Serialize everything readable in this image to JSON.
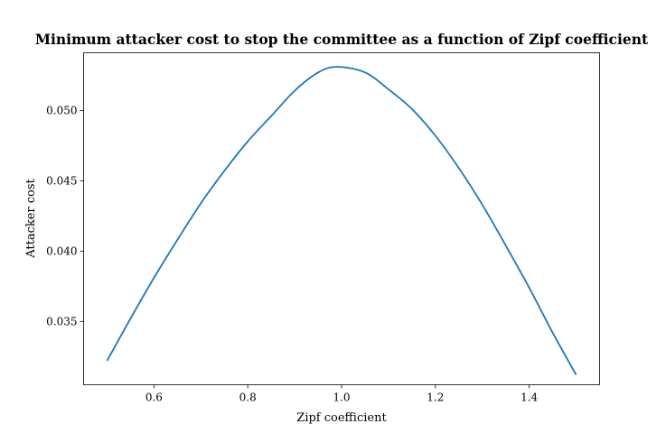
{
  "chart_data": {
    "type": "line",
    "title": "Minimum attacker cost to stop the committee as a function of Zipf coefficient",
    "xlabel": "Zipf coefficient",
    "ylabel": "Attacker cost",
    "xlim": [
      0.45,
      1.55
    ],
    "ylim": [
      0.0305,
      0.0541
    ],
    "grid": false,
    "legend": "none",
    "xticks": [
      {
        "value": 0.6,
        "label": "0.6"
      },
      {
        "value": 0.8,
        "label": "0.8"
      },
      {
        "value": 1.0,
        "label": "1.0"
      },
      {
        "value": 1.2,
        "label": "1.2"
      },
      {
        "value": 1.4,
        "label": "1.4"
      }
    ],
    "yticks": [
      {
        "value": 0.035,
        "label": "0.035"
      },
      {
        "value": 0.04,
        "label": "0.040"
      },
      {
        "value": 0.045,
        "label": "0.045"
      },
      {
        "value": 0.05,
        "label": "0.050"
      }
    ],
    "series": [
      {
        "color": "#1f77b4",
        "x": [
          0.5,
          0.55,
          0.6,
          0.65,
          0.7,
          0.75,
          0.8,
          0.85,
          0.9,
          0.95,
          0.99,
          1.05,
          1.1,
          1.15,
          1.2,
          1.25,
          1.3,
          1.35,
          1.4,
          1.45,
          1.5
        ],
        "y": [
          0.0322,
          0.0352,
          0.0381,
          0.0408,
          0.0434,
          0.0457,
          0.0478,
          0.0496,
          0.0514,
          0.0527,
          0.0531,
          0.0527,
          0.0515,
          0.0501,
          0.0482,
          0.0459,
          0.0433,
          0.0404,
          0.0374,
          0.0342,
          0.0312
        ]
      }
    ]
  }
}
